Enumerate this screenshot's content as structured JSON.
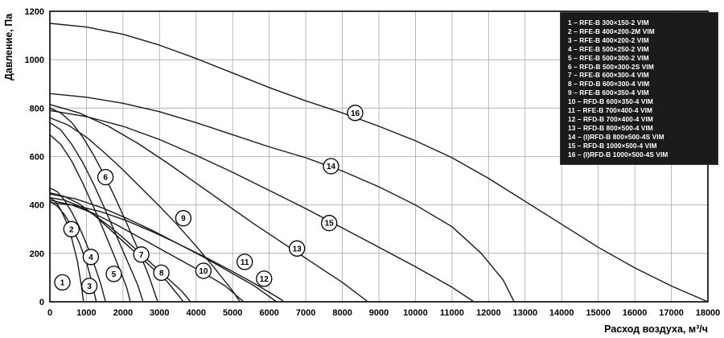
{
  "chart_data": {
    "type": "line",
    "title": "",
    "xlabel": "Расход воздуха, м³/ч",
    "ylabel": "Давление, Па",
    "xlim": [
      0,
      18000
    ],
    "ylim": [
      0,
      1200
    ],
    "x_ticks": [
      0,
      1000,
      2000,
      3000,
      4000,
      5000,
      6000,
      7000,
      8000,
      9000,
      10000,
      11000,
      12000,
      13000,
      14000,
      15000,
      16000,
      17000,
      18000
    ],
    "y_ticks": [
      0,
      200,
      400,
      600,
      800,
      1000,
      1200
    ],
    "grid": true,
    "legend_position": "top-right",
    "series": [
      {
        "id": 1,
        "legend": "1 – RFE-B 300×150-2 VIM",
        "marker": [
          340,
          80
        ],
        "points": [
          [
            0,
            430
          ],
          [
            150,
            415
          ],
          [
            300,
            380
          ],
          [
            450,
            330
          ],
          [
            600,
            260
          ],
          [
            750,
            170
          ],
          [
            870,
            60
          ],
          [
            920,
            0
          ]
        ]
      },
      {
        "id": 2,
        "legend": "2 – RFE-B 400×200-2M VIM",
        "marker": [
          590,
          300
        ],
        "points": [
          [
            0,
            470
          ],
          [
            200,
            455
          ],
          [
            400,
            420
          ],
          [
            600,
            370
          ],
          [
            800,
            310
          ],
          [
            1000,
            240
          ],
          [
            1200,
            160
          ],
          [
            1400,
            70
          ],
          [
            1520,
            0
          ]
        ]
      },
      {
        "id": 3,
        "legend": "3 – RFE-B 400×200-2 VIM",
        "marker": [
          1080,
          65
        ],
        "points": [
          [
            0,
            415
          ],
          [
            200,
            395
          ],
          [
            400,
            360
          ],
          [
            600,
            310
          ],
          [
            800,
            245
          ],
          [
            1000,
            165
          ],
          [
            1150,
            80
          ],
          [
            1270,
            0
          ]
        ]
      },
      {
        "id": 4,
        "legend": "4 – RFE-B 500×250-2 VIM",
        "marker": [
          1120,
          185
        ],
        "points": [
          [
            0,
            690
          ],
          [
            300,
            650
          ],
          [
            600,
            580
          ],
          [
            900,
            490
          ],
          [
            1200,
            390
          ],
          [
            1500,
            285
          ],
          [
            1800,
            175
          ],
          [
            2100,
            60
          ],
          [
            2200,
            0
          ]
        ]
      },
      {
        "id": 5,
        "legend": "5 – RFE-B 500×300-2 VIM",
        "marker": [
          1750,
          115
        ],
        "points": [
          [
            0,
            740
          ],
          [
            300,
            710
          ],
          [
            600,
            650
          ],
          [
            900,
            575
          ],
          [
            1200,
            485
          ],
          [
            1500,
            385
          ],
          [
            1800,
            280
          ],
          [
            2100,
            175
          ],
          [
            2400,
            70
          ],
          [
            2550,
            0
          ]
        ]
      },
      {
        "id": 6,
        "legend": "6 – RFD-B 500×300-2S VIM",
        "marker": [
          1520,
          515
        ],
        "points": [
          [
            0,
            800
          ],
          [
            300,
            780
          ],
          [
            600,
            740
          ],
          [
            900,
            680
          ],
          [
            1200,
            605
          ],
          [
            1500,
            520
          ],
          [
            1800,
            425
          ],
          [
            2100,
            325
          ],
          [
            2400,
            220
          ],
          [
            2700,
            110
          ],
          [
            2950,
            0
          ]
        ]
      },
      {
        "id": 7,
        "legend": "7 – RFE-B 600×300-4 VIM",
        "marker": [
          2500,
          195
        ],
        "points": [
          [
            0,
            450
          ],
          [
            400,
            435
          ],
          [
            800,
            405
          ],
          [
            1200,
            360
          ],
          [
            1600,
            305
          ],
          [
            2000,
            250
          ],
          [
            2400,
            195
          ],
          [
            2800,
            140
          ],
          [
            3200,
            85
          ],
          [
            3550,
            20
          ],
          [
            3650,
            0
          ]
        ]
      },
      {
        "id": 8,
        "legend": "8 – RFD-B 600×300-4 VIM",
        "marker": [
          3050,
          120
        ],
        "points": [
          [
            0,
            430
          ],
          [
            400,
            420
          ],
          [
            800,
            395
          ],
          [
            1200,
            360
          ],
          [
            1600,
            315
          ],
          [
            2000,
            265
          ],
          [
            2400,
            210
          ],
          [
            2800,
            155
          ],
          [
            3200,
            100
          ],
          [
            3600,
            45
          ],
          [
            3850,
            0
          ]
        ]
      },
      {
        "id": 9,
        "legend": "9 – RFE-B 600×350-4 VIM",
        "marker": [
          3650,
          345
        ],
        "points": [
          [
            0,
            760
          ],
          [
            500,
            730
          ],
          [
            1000,
            680
          ],
          [
            1500,
            615
          ],
          [
            2000,
            545
          ],
          [
            2500,
            470
          ],
          [
            3000,
            395
          ],
          [
            3500,
            315
          ],
          [
            4000,
            230
          ],
          [
            4500,
            140
          ],
          [
            5000,
            45
          ],
          [
            5200,
            0
          ]
        ]
      },
      {
        "id": 10,
        "legend": "10 – RFD-B 600×350-4 VIM",
        "marker": [
          4200,
          128
        ],
        "points": [
          [
            0,
            420
          ],
          [
            600,
            400
          ],
          [
            1200,
            365
          ],
          [
            1800,
            320
          ],
          [
            2400,
            270
          ],
          [
            3000,
            220
          ],
          [
            3600,
            170
          ],
          [
            4200,
            120
          ],
          [
            4800,
            65
          ],
          [
            5300,
            0
          ]
        ]
      },
      {
        "id": 11,
        "legend": "11 – RFE-B 700×400-4 VIM",
        "marker": [
          5330,
          165
        ],
        "points": [
          [
            0,
            445
          ],
          [
            700,
            425
          ],
          [
            1400,
            390
          ],
          [
            2100,
            345
          ],
          [
            2800,
            295
          ],
          [
            3500,
            240
          ],
          [
            4200,
            185
          ],
          [
            4900,
            125
          ],
          [
            5600,
            65
          ],
          [
            6200,
            0
          ]
        ]
      },
      {
        "id": 12,
        "legend": "12 – RFD-B 700×400-4 VIM",
        "marker": [
          5860,
          95
        ],
        "points": [
          [
            0,
            410
          ],
          [
            700,
            398
          ],
          [
            1400,
            372
          ],
          [
            2100,
            335
          ],
          [
            2800,
            290
          ],
          [
            3500,
            240
          ],
          [
            4200,
            188
          ],
          [
            4900,
            133
          ],
          [
            5600,
            75
          ],
          [
            6300,
            12
          ],
          [
            6400,
            0
          ]
        ]
      },
      {
        "id": 13,
        "legend": "13 – RFD-B 800×500-4 VIM",
        "marker": [
          6760,
          220
        ],
        "points": [
          [
            0,
            815
          ],
          [
            800,
            780
          ],
          [
            1600,
            725
          ],
          [
            2400,
            655
          ],
          [
            3200,
            575
          ],
          [
            4000,
            490
          ],
          [
            4800,
            405
          ],
          [
            5600,
            320
          ],
          [
            6400,
            240
          ],
          [
            7200,
            160
          ],
          [
            8000,
            80
          ],
          [
            8700,
            0
          ]
        ]
      },
      {
        "id": 14,
        "legend": "14 – (I)RFD-B 800×500-4S VIM",
        "marker": [
          7690,
          560
        ],
        "points": [
          [
            0,
            860
          ],
          [
            1000,
            845
          ],
          [
            2000,
            820
          ],
          [
            3000,
            785
          ],
          [
            4000,
            740
          ],
          [
            5000,
            690
          ],
          [
            6000,
            640
          ],
          [
            7000,
            595
          ],
          [
            8000,
            540
          ],
          [
            9000,
            475
          ],
          [
            10000,
            400
          ],
          [
            11000,
            310
          ],
          [
            11800,
            200
          ],
          [
            12400,
            90
          ],
          [
            12700,
            0
          ]
        ]
      },
      {
        "id": 15,
        "legend": "15 – RFD-B 1000×500-4 VIM",
        "marker": [
          7640,
          325
        ],
        "points": [
          [
            0,
            790
          ],
          [
            1000,
            765
          ],
          [
            2000,
            725
          ],
          [
            3000,
            670
          ],
          [
            4000,
            605
          ],
          [
            5000,
            535
          ],
          [
            6000,
            460
          ],
          [
            7000,
            385
          ],
          [
            8000,
            305
          ],
          [
            9000,
            225
          ],
          [
            10000,
            145
          ],
          [
            11000,
            60
          ],
          [
            11600,
            0
          ]
        ]
      },
      {
        "id": 16,
        "legend": "16 – (I)RFD-B 1000×500-4S VIM",
        "marker": [
          8350,
          780
        ],
        "points": [
          [
            0,
            1150
          ],
          [
            1000,
            1135
          ],
          [
            2000,
            1105
          ],
          [
            3000,
            1060
          ],
          [
            4000,
            1005
          ],
          [
            5000,
            945
          ],
          [
            6000,
            885
          ],
          [
            7000,
            830
          ],
          [
            8000,
            780
          ],
          [
            9000,
            725
          ],
          [
            10000,
            665
          ],
          [
            11000,
            595
          ],
          [
            12000,
            510
          ],
          [
            13000,
            415
          ],
          [
            14000,
            320
          ],
          [
            15000,
            225
          ],
          [
            16000,
            140
          ],
          [
            17000,
            65
          ],
          [
            18000,
            0
          ]
        ]
      }
    ]
  }
}
